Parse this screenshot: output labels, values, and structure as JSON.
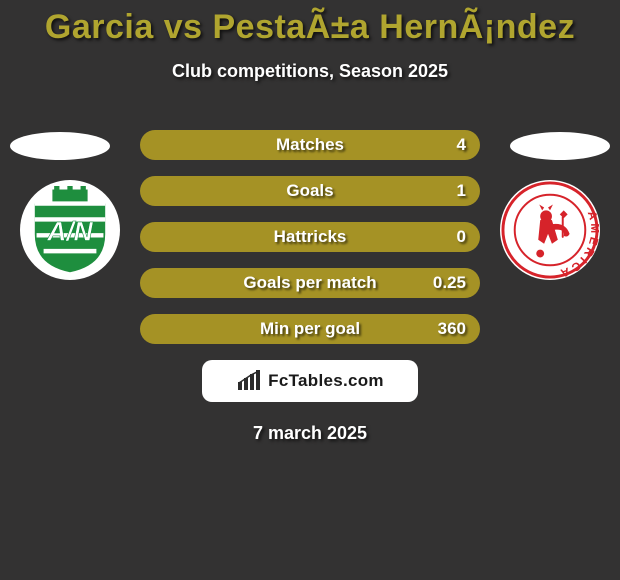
{
  "title": {
    "text": "Garcia vs PestaÃ±a HernÃ¡ndez",
    "color": "#b0a52f",
    "fontsize": 34
  },
  "subtitle": {
    "text": "Club competitions, Season 2025",
    "color": "#ffffff",
    "fontsize": 18
  },
  "background_color": "#333232",
  "ellipse_color": "#ffffff",
  "crest_left": {
    "bg": "#ffffff",
    "primary": "#1e8e3e",
    "secondary": "#ffffff",
    "initials": "A/N"
  },
  "crest_right": {
    "bg": "#ffffff",
    "primary": "#d6232a",
    "ring_text": "AMERICA"
  },
  "bar_style": {
    "bg": "#a59225",
    "label_color": "#ffffff",
    "label_fontsize": 17,
    "value_fontsize": 17,
    "height": 30,
    "gap": 16,
    "radius": 16
  },
  "bars": [
    {
      "label": "Matches",
      "value": "4"
    },
    {
      "label": "Goals",
      "value": "1"
    },
    {
      "label": "Hattricks",
      "value": "0"
    },
    {
      "label": "Goals per match",
      "value": "0.25"
    },
    {
      "label": "Min per goal",
      "value": "360"
    }
  ],
  "logo": {
    "text": "FcTables.com",
    "box_bg": "#ffffff",
    "text_color": "#1a1a1a",
    "fontsize": 17,
    "chart_color": "#2b2b2b"
  },
  "date": {
    "text": "7 march 2025",
    "color": "#ffffff",
    "fontsize": 18
  }
}
